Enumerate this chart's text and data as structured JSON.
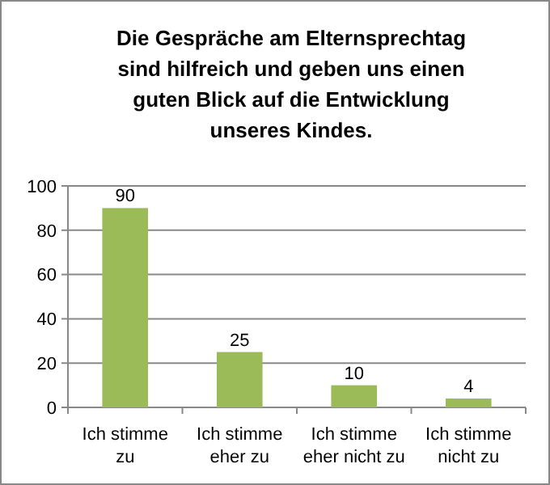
{
  "chart_data": {
    "type": "bar",
    "title": "Die Gespräche am Elternsprechtag sind hilfreich und geben uns einen guten Blick auf die Entwicklung unseres Kindes.",
    "categories": [
      "Ich stimme zu",
      "Ich stimme eher zu",
      "Ich stimme eher nicht zu",
      "Ich stimme nicht zu"
    ],
    "values": [
      90,
      25,
      10,
      4
    ],
    "color": "#9bbb59",
    "ylim": [
      0,
      100
    ],
    "yticks": [
      0,
      20,
      40,
      60,
      80,
      100
    ],
    "grid": "y",
    "data_labels": true
  }
}
